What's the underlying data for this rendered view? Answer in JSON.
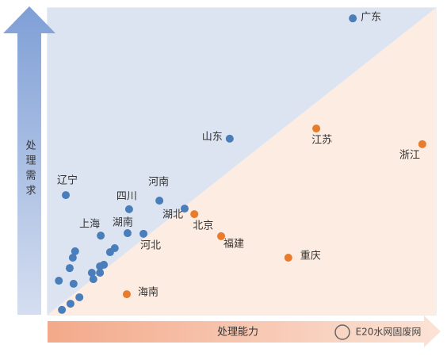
{
  "chart_data": {
    "type": "scatter",
    "xlim": [
      0,
      100
    ],
    "ylim": [
      0,
      100
    ],
    "xlabel": "处理能力",
    "ylabel": "处理需求",
    "watermark": "E20水网固废网",
    "series": [
      {
        "color": "#4a7ebb",
        "x": [
          78.6,
          46.9,
          4.7,
          28.8,
          21.0,
          35.3,
          13.7,
          20.6,
          24.7,
          7.1,
          6.5,
          5.7,
          2.9,
          6.7,
          11.8,
          11.4,
          13.5,
          14.5,
          13.5,
          16.1,
          17.3,
          8.2,
          5.9,
          3.7
        ],
        "values": [
          96.6,
          57.4,
          39.0,
          37.2,
          34.4,
          34.6,
          25.8,
          26.6,
          26.4,
          20.7,
          18.6,
          15.2,
          11.1,
          10.1,
          11.6,
          13.7,
          15.8,
          16.3,
          13.7,
          20.4,
          21.7,
          5.7,
          3.6,
          1.6
        ],
        "labels": [
          "广东",
          "山东",
          "辽宁",
          "河南",
          "四川",
          "湖北",
          "上海",
          "湖南",
          "河北",
          null,
          null,
          null,
          null,
          null,
          null,
          null,
          null,
          null,
          null,
          null,
          null,
          null,
          null,
          null
        ]
      },
      {
        "color": "#e97b2c",
        "x": [
          69.2,
          96.5,
          37.8,
          44.7,
          62.0,
          20.4
        ],
        "values": [
          60.7,
          55.6,
          32.8,
          25.6,
          18.6,
          6.7
        ],
        "labels": [
          "江苏",
          "浙江",
          "北京",
          "福建",
          "重庆",
          "海南"
        ]
      }
    ]
  }
}
